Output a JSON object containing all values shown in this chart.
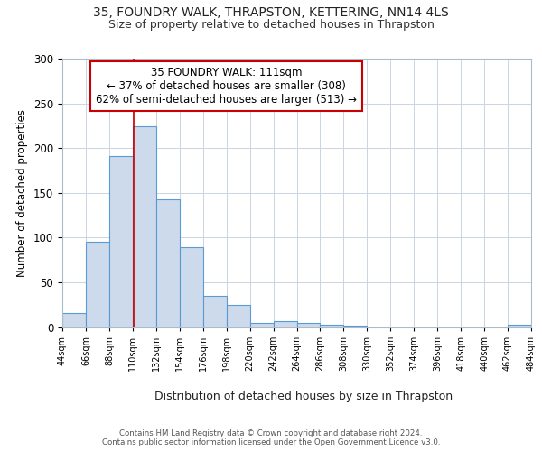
{
  "title1": "35, FOUNDRY WALK, THRAPSTON, KETTERING, NN14 4LS",
  "title2": "Size of property relative to detached houses in Thrapston",
  "xlabel": "Distribution of detached houses by size in Thrapston",
  "ylabel": "Number of detached properties",
  "bin_edges": [
    44,
    66,
    88,
    110,
    132,
    154,
    176,
    198,
    220,
    242,
    264,
    286,
    308,
    330,
    352,
    374,
    396,
    418,
    440,
    462,
    484
  ],
  "bar_heights": [
    16,
    95,
    191,
    224,
    143,
    89,
    35,
    25,
    5,
    7,
    5,
    3,
    2,
    0,
    0,
    0,
    0,
    0,
    0,
    3
  ],
  "bar_color": "#cddaeb",
  "bar_edge_color": "#5b9bd5",
  "property_sqm": 111,
  "red_line_color": "#cc0000",
  "annotation_text": "35 FOUNDRY WALK: 111sqm\n← 37% of detached houses are smaller (308)\n62% of semi-detached houses are larger (513) →",
  "annotation_box_color": "#ffffff",
  "annotation_box_edge_color": "#cc0000",
  "ylim": [
    0,
    300
  ],
  "yticks": [
    0,
    50,
    100,
    150,
    200,
    250,
    300
  ],
  "footer_text": "Contains HM Land Registry data © Crown copyright and database right 2024.\nContains public sector information licensed under the Open Government Licence v3.0.",
  "bg_color": "#ffffff",
  "plot_bg_color": "#ffffff",
  "grid_color": "#c8d4e0"
}
